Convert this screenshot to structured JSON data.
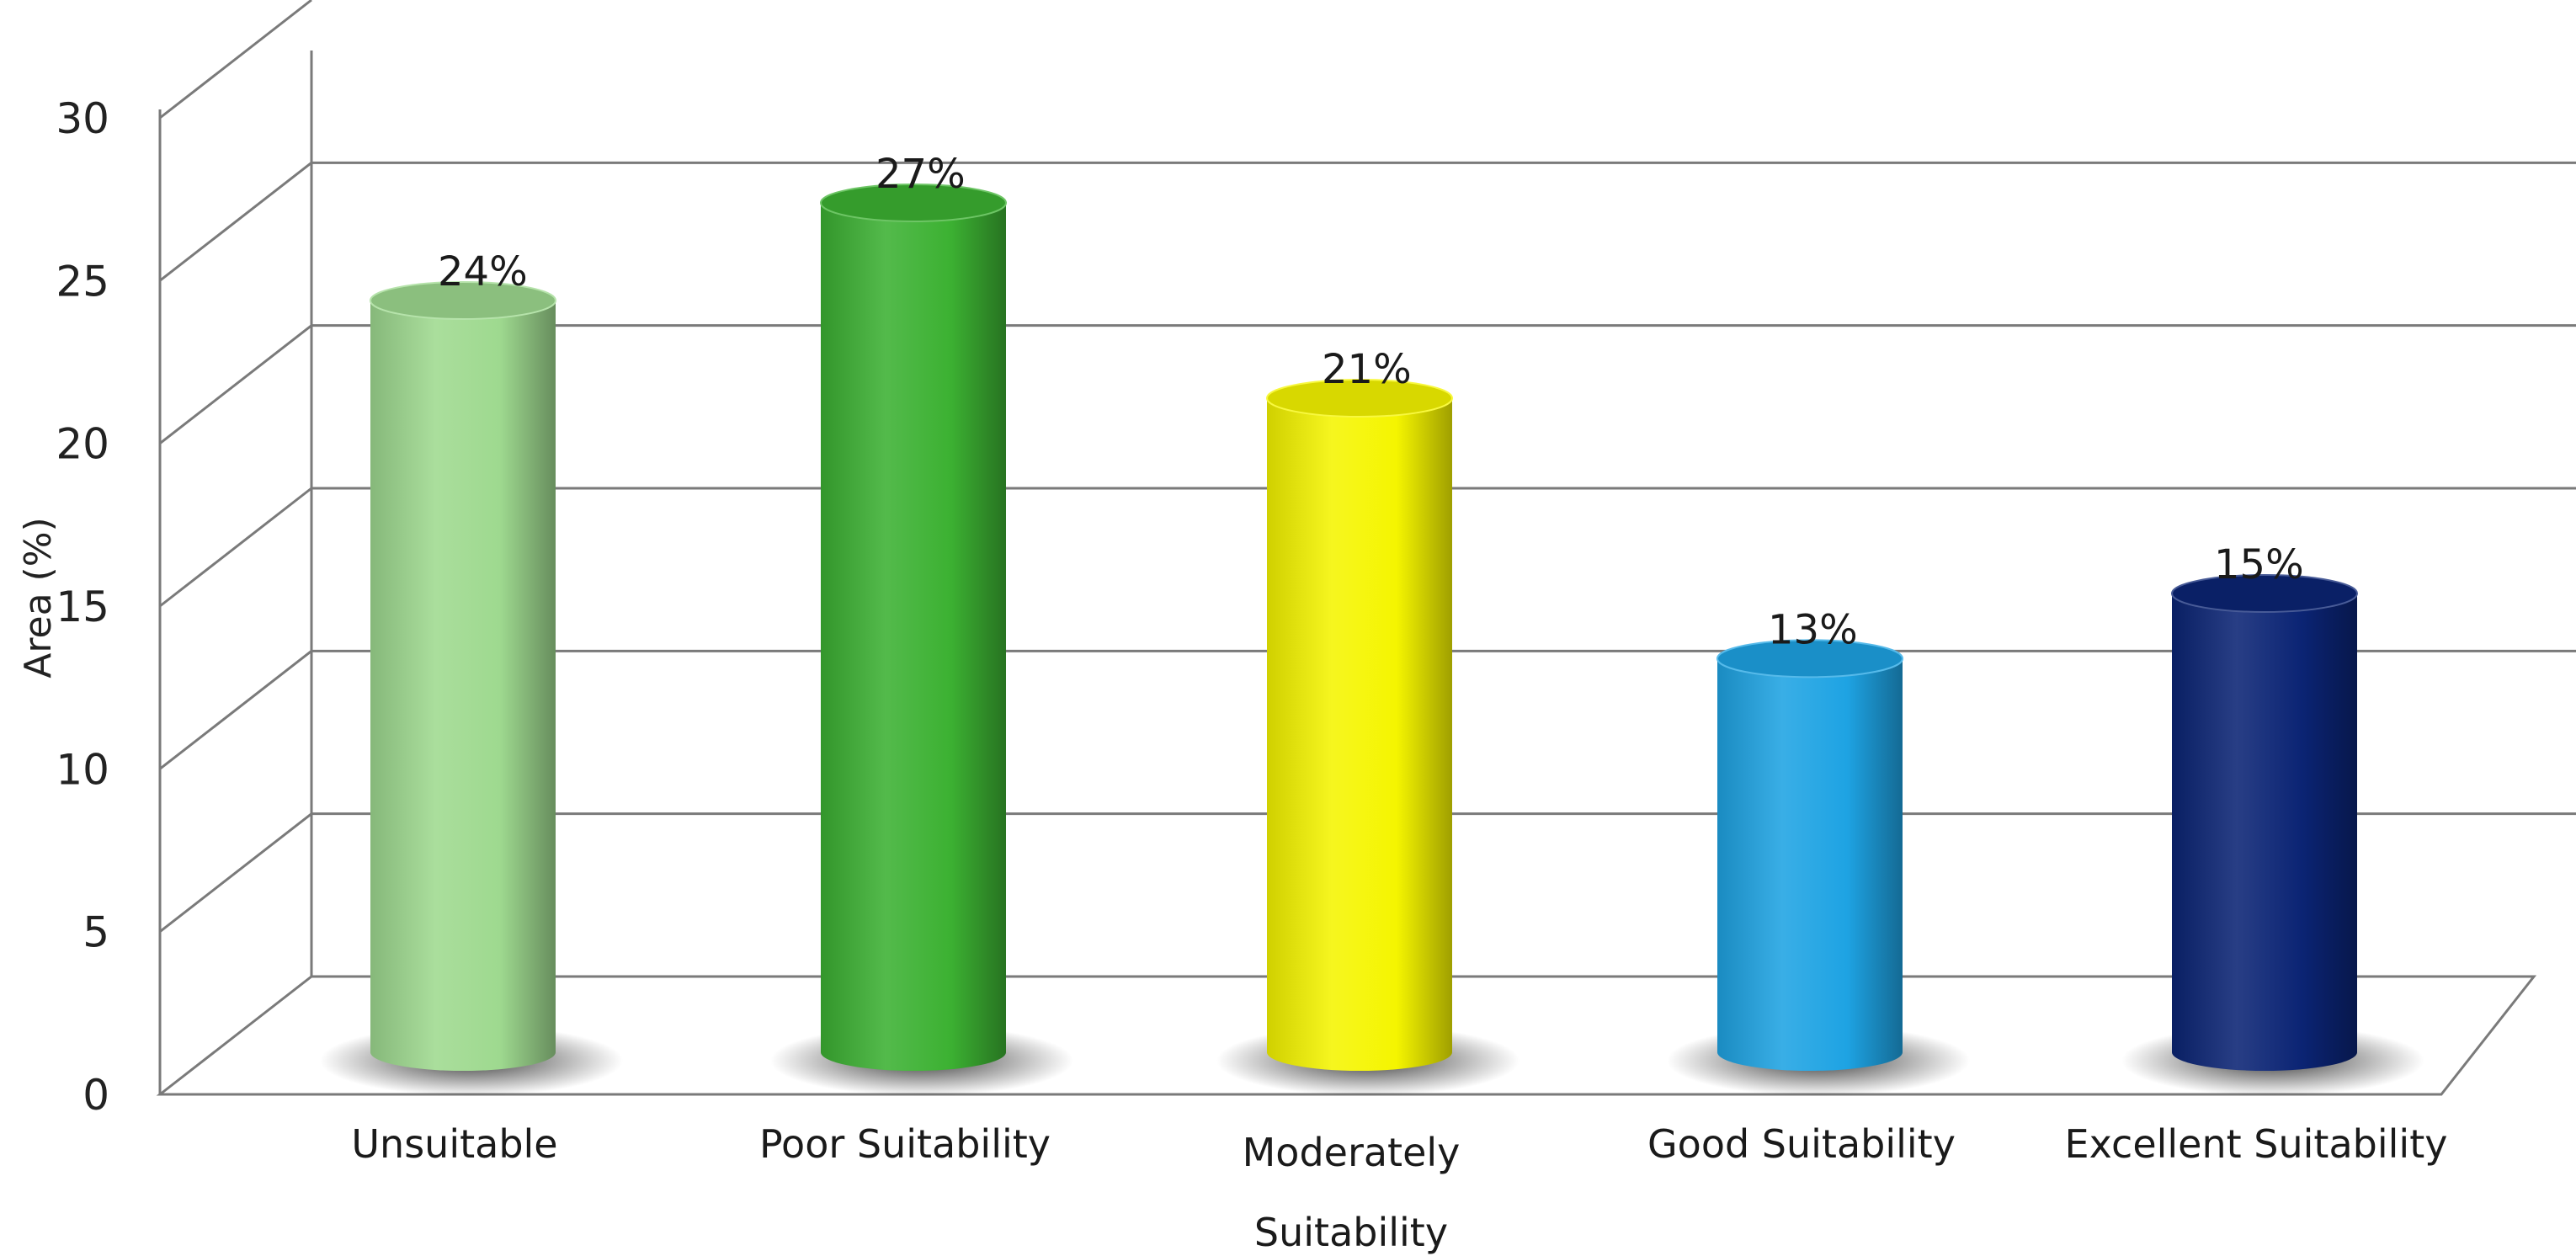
{
  "chart_data": {
    "type": "bar",
    "style": "3d-cylinder",
    "ylabel": "Area (%)",
    "xlabel": "",
    "ylim": [
      0,
      30
    ],
    "yticks": [
      0,
      5,
      10,
      15,
      20,
      25,
      30
    ],
    "grid": true,
    "categories": [
      "Unsuitable",
      "Poor Suitability",
      "Moderately Suitability",
      "Good Suitability",
      "Excellent Suitability"
    ],
    "category_lines": [
      [
        "Unsuitable"
      ],
      [
        "Poor Suitability"
      ],
      [
        "Moderately",
        "Suitability"
      ],
      [
        "Good Suitability"
      ],
      [
        "Excellent Suitability"
      ]
    ],
    "values": [
      24,
      27,
      21,
      13,
      15
    ],
    "data_labels": [
      "24%",
      "27%",
      "21%",
      "13%",
      "15%"
    ],
    "colors": [
      "#9ed98f",
      "#3cb132",
      "#f5f500",
      "#1ea3e3",
      "#0b2474"
    ]
  }
}
